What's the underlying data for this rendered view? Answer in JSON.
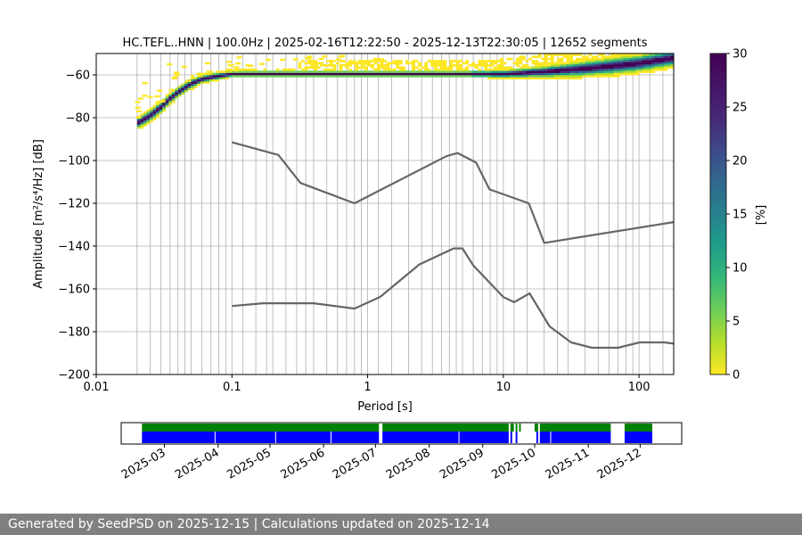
{
  "footer": "Generated by SeedPSD on 2025-12-15 | Calculations updated on 2025-12-14",
  "chart_data": {
    "type": "heatmap",
    "title": "HC.TEFL..HNN | 100.0Hz | 2025-02-16T12:22:50 - 2025-12-13T22:30:05 | 12652 segments",
    "xlabel": "Period [s]",
    "ylabel": "Amplitude [m²/s⁴/Hz] [dB]",
    "x_scale": "log",
    "xlim": [
      0.01,
      180
    ],
    "ylim": [
      -200,
      -50
    ],
    "x_ticks": [
      {
        "value": 0.01,
        "label": "0.01"
      },
      {
        "value": 0.1,
        "label": "0.1"
      },
      {
        "value": 1,
        "label": "1"
      },
      {
        "value": 10,
        "label": "10"
      },
      {
        "value": 100,
        "label": "100"
      }
    ],
    "y_ticks": [
      -200,
      -180,
      -160,
      -140,
      -120,
      -100,
      -80,
      -60
    ],
    "grid": true,
    "grid_periods": [
      0.02,
      0.025,
      0.03,
      0.035,
      0.04,
      0.045,
      0.05,
      0.06,
      0.07,
      0.08,
      0.09,
      0.1,
      0.12,
      0.15,
      0.18,
      0.2,
      0.25,
      0.3,
      0.35,
      0.4,
      0.5,
      0.6,
      0.7,
      0.8,
      0.9,
      1,
      1.2,
      1.5,
      2,
      2.5,
      3,
      3.5,
      4,
      4.5,
      5,
      6,
      7,
      8,
      9,
      10,
      12,
      15,
      20,
      25,
      30,
      40,
      50,
      60,
      70,
      80,
      90,
      100,
      120,
      150
    ],
    "nhnm": {
      "name": "NHNM",
      "color": "#666666",
      "points": [
        [
          0.1,
          -91.5
        ],
        [
          0.22,
          -97.4
        ],
        [
          0.32,
          -110.5
        ],
        [
          0.8,
          -120
        ],
        [
          3.8,
          -98
        ],
        [
          4.6,
          -96.5
        ],
        [
          6.3,
          -101
        ],
        [
          7.9,
          -113.5
        ],
        [
          15.4,
          -120
        ],
        [
          20,
          -138.5
        ],
        [
          180,
          -128.8
        ]
      ]
    },
    "nlnm": {
      "name": "NLNM",
      "color": "#666666",
      "points": [
        [
          0.1,
          -168
        ],
        [
          0.17,
          -166.7
        ],
        [
          0.4,
          -166.7
        ],
        [
          0.8,
          -169.2
        ],
        [
          1.24,
          -163.7
        ],
        [
          2.4,
          -148.6
        ],
        [
          4.3,
          -141.1
        ],
        [
          5,
          -141.1
        ],
        [
          6,
          -149
        ],
        [
          10,
          -163.8
        ],
        [
          12,
          -166.2
        ],
        [
          15.6,
          -162.1
        ],
        [
          21.9,
          -177.5
        ],
        [
          31.6,
          -185
        ],
        [
          45,
          -187.5
        ],
        [
          70,
          -187.5
        ],
        [
          101,
          -185
        ],
        [
          154,
          -185
        ],
        [
          180,
          -185.6
        ]
      ]
    },
    "psd_density": [
      {
        "period": 0.02,
        "center": -82.5,
        "spread": 1.2
      },
      {
        "period": 0.025,
        "center": -79,
        "spread": 1.2
      },
      {
        "period": 0.03,
        "center": -75,
        "spread": 1.2
      },
      {
        "period": 0.035,
        "center": -71,
        "spread": 1.0
      },
      {
        "period": 0.04,
        "center": -68,
        "spread": 1.0
      },
      {
        "period": 0.045,
        "center": -66,
        "spread": 1.0
      },
      {
        "period": 0.05,
        "center": -64,
        "spread": 1.0
      },
      {
        "period": 0.06,
        "center": -62,
        "spread": 0.8
      },
      {
        "period": 0.07,
        "center": -61,
        "spread": 0.8
      },
      {
        "period": 0.1,
        "center": -59.5,
        "spread": 0.6
      },
      {
        "period": 1,
        "center": -59.5,
        "spread": 0.6
      },
      {
        "period": 5,
        "center": -59.5,
        "spread": 0.6
      },
      {
        "period": 10,
        "center": -59.5,
        "spread": 0.8
      },
      {
        "period": 20,
        "center": -58.5,
        "spread": 1.2
      },
      {
        "period": 40,
        "center": -57,
        "spread": 1.6
      },
      {
        "period": 70,
        "center": -55.5,
        "spread": 1.8
      },
      {
        "period": 100,
        "center": -54.5,
        "spread": 1.8
      },
      {
        "period": 180,
        "center": -52,
        "spread": 1.8
      }
    ],
    "colorbar": {
      "label": "[%]",
      "min": 0,
      "max": 30,
      "ticks": [
        0,
        5,
        10,
        15,
        20,
        25,
        30
      ],
      "colormap": "viridis_r"
    },
    "availability": {
      "start": "2025-02-16",
      "end": "2025-12-13",
      "month_labels": [
        "2025-03",
        "2025-04",
        "2025-05",
        "2025-06",
        "2025-07",
        "2025-08",
        "2025-09",
        "2025-10",
        "2025-11",
        "2025-12"
      ],
      "data_color": "#0000ff",
      "processed_color": "#008000",
      "processed_periods": [
        [
          "2025-02-16",
          "2025-07-03"
        ],
        [
          "2025-07-05",
          "2025-09-16"
        ],
        [
          "2025-09-17",
          "2025-09-19"
        ],
        [
          "2025-09-20",
          "2025-09-21"
        ],
        [
          "2025-09-22",
          "2025-09-23"
        ],
        [
          "2025-10-01",
          "2025-10-03"
        ],
        [
          "2025-10-04",
          "2025-11-14"
        ],
        [
          "2025-11-22",
          "2025-12-08"
        ]
      ],
      "data_periods": [
        [
          "2025-02-16",
          "2025-07-03"
        ],
        [
          "2025-07-05",
          "2025-09-16"
        ],
        [
          "2025-09-17",
          "2025-09-18"
        ],
        [
          "2025-09-20",
          "2025-09-21"
        ],
        [
          "2025-10-02",
          "2025-10-03"
        ],
        [
          "2025-10-04",
          "2025-11-14"
        ],
        [
          "2025-11-22",
          "2025-12-08"
        ]
      ],
      "data_gaps": [
        "2025-03-30",
        "2025-05-04",
        "2025-06-05",
        "2025-08-18",
        "2025-10-10"
      ]
    }
  }
}
